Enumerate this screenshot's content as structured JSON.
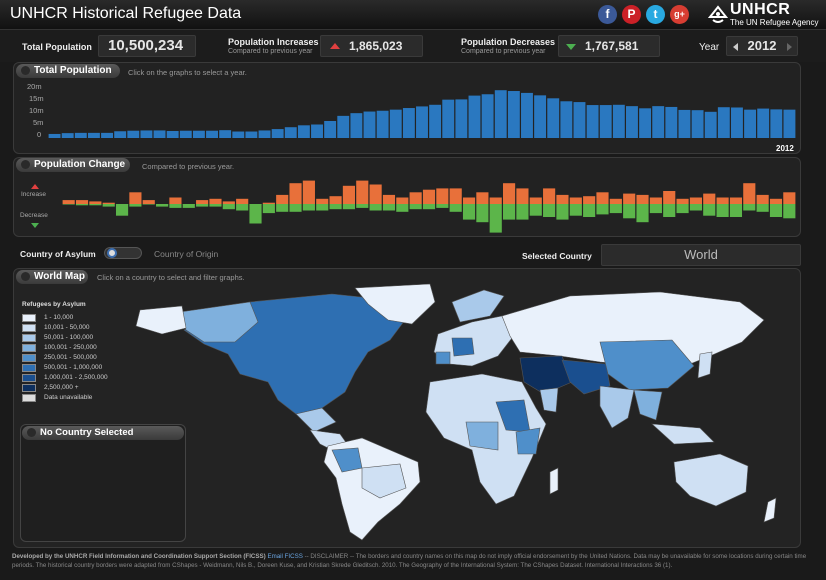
{
  "header": {
    "title": "UNHCR Historical Refugee Data",
    "social": [
      "f",
      "P",
      "t",
      "g+"
    ],
    "logo_brand": "UNHCR",
    "logo_tagline": "The UN Refugee Agency"
  },
  "stats": {
    "total_label": "Total Population",
    "total_value": "10,500,234",
    "increase_label": "Population Increases",
    "increase_sub": "Compared to previous year",
    "increase_value": "1,865,023",
    "decrease_label": "Population Decreases",
    "decrease_sub": "Compared to previous year",
    "decrease_value": "1,767,581",
    "year_label": "Year",
    "year_value": "2012"
  },
  "total_panel": {
    "title": "Total Population",
    "hint": "Click on the graphs to select a year.",
    "year_marker": "2012"
  },
  "change_panel": {
    "title": "Population Change",
    "hint": "Compared to previous year.",
    "increase_label": "Increase",
    "decrease_label": "Decrease"
  },
  "country_toggle": {
    "asylum_label": "Country of Asylum",
    "origin_label": "Country of Origin",
    "selected_label": "Selected Country",
    "selected_value": "World"
  },
  "map_panel": {
    "title": "World Map",
    "hint": "Click on a country to select and filter graphs.",
    "legend_title": "Refugees by Asylum",
    "legend": [
      {
        "label": "1 - 10,000",
        "color": "#e9f1fb"
      },
      {
        "label": "10,001 - 50,000",
        "color": "#cfe0f3"
      },
      {
        "label": "50,001 - 100,000",
        "color": "#a9c9ea"
      },
      {
        "label": "100,001 - 250,000",
        "color": "#7fb0dd"
      },
      {
        "label": "250,001 - 500,000",
        "color": "#4f8fca"
      },
      {
        "label": "500,001 - 1,000,000",
        "color": "#2e6fb2"
      },
      {
        "label": "1,000,001 - 2,500,000",
        "color": "#1a4f8f"
      },
      {
        "label": "2,500,000 +",
        "color": "#0d2f5e"
      },
      {
        "label": "Data unavailable",
        "color": "#dddddd"
      }
    ],
    "no_country_label": "No Country Selected"
  },
  "footer": {
    "credit": "Developed by the UNHCR Field Information and Coordination Support Section (FICSS)",
    "email": "Email FICSS",
    "disclaimer": "-- DISCLAIMER -- The borders and country names on this map do not imply official endorsement by the United Nations. Data may be unavailable for some locations during certain time periods. The historical country borders were adapted from CShapes - Weidmann, Nils B., Doreen Kuse, and Kristian Skrede Gleditsch. 2010. The Geography of the International System: The CShapes Dataset. International Interactions 36 (1)."
  },
  "colors": {
    "bar_blue": "#2a78c0",
    "increase": "#e8703a",
    "decrease": "#5cb54a",
    "land_light": "#dfe9f4",
    "ocean": "#232323"
  },
  "chart_data": [
    {
      "type": "bar",
      "title": "Total Population",
      "ylabel": "",
      "y_ticks": [
        "20m",
        "15m",
        "10m",
        "5m",
        "0"
      ],
      "ylim": [
        0,
        20
      ],
      "values": [
        1.5,
        1.8,
        1.9,
        1.9,
        1.9,
        2.5,
        2.7,
        2.8,
        2.8,
        2.6,
        2.7,
        2.7,
        2.7,
        2.9,
        2.4,
        2.4,
        2.8,
        3.3,
        4.0,
        4.7,
        5.0,
        6.3,
        8.2,
        9.2,
        9.8,
        10.1,
        10.5,
        11.1,
        11.7,
        12.3,
        14.2,
        14.3,
        15.7,
        16.2,
        17.7,
        17.4,
        16.7,
        15.8,
        14.7,
        13.6,
        13.3,
        12.2,
        12.2,
        12.3,
        11.8,
        11.0,
        11.8,
        11.5,
        10.4,
        10.3,
        9.7,
        11.4,
        11.3,
        10.5,
        10.9,
        10.6,
        10.5
      ],
      "selected_label": "2012"
    },
    {
      "type": "bar",
      "title": "Population Change",
      "series": [
        {
          "name": "Increase",
          "values": [
            0.3,
            0.3,
            0.2,
            0.1,
            0.0,
            0.9,
            0.3,
            0.0,
            0.5,
            0.0,
            0.3,
            0.4,
            0.2,
            0.4,
            0.0,
            0.1,
            0.7,
            1.6,
            1.8,
            0.4,
            0.6,
            1.4,
            1.8,
            1.5,
            0.7,
            0.5,
            0.9,
            1.1,
            1.2,
            1.2,
            0.5,
            0.9,
            0.5,
            1.6,
            1.2,
            0.5,
            1.2,
            0.7,
            0.5,
            0.6,
            0.9,
            0.4,
            0.8,
            0.7,
            0.5,
            1.0,
            0.4,
            0.5,
            0.8,
            0.5,
            0.5,
            1.6,
            0.7,
            0.4,
            0.9
          ],
          "color": "#e8703a"
        },
        {
          "name": "Decrease",
          "values": [
            0.0,
            0.1,
            0.1,
            0.2,
            0.9,
            0.2,
            0.0,
            0.2,
            0.3,
            0.3,
            0.2,
            0.2,
            0.4,
            0.5,
            1.5,
            0.7,
            0.6,
            0.6,
            0.5,
            0.5,
            0.4,
            0.4,
            0.3,
            0.5,
            0.5,
            0.6,
            0.4,
            0.4,
            0.3,
            0.6,
            1.2,
            1.4,
            2.2,
            1.2,
            1.2,
            0.9,
            1.0,
            1.2,
            0.9,
            1.0,
            0.8,
            0.7,
            1.1,
            1.4,
            0.7,
            1.0,
            0.7,
            0.5,
            0.9,
            1.0,
            1.0,
            0.5,
            0.6,
            1.0,
            1.1
          ],
          "color": "#5cb54a"
        }
      ]
    }
  ]
}
